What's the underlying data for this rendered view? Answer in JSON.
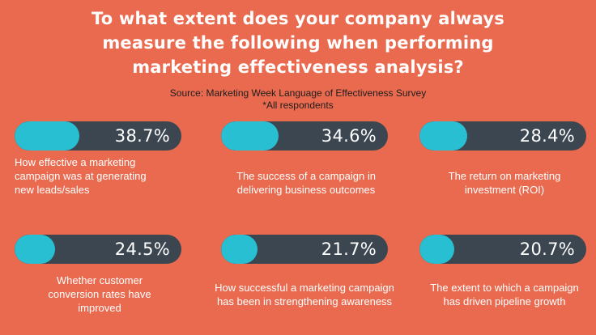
{
  "title_lines": [
    "To what extent does your company always",
    "measure the following when performing",
    "marketing effectiveness analysis?"
  ],
  "source_line": "Source: Marketing Week Language of Effectiveness Survey",
  "respondents_note": "*All respondents",
  "colors": {
    "background": "#ea6a4f",
    "track": "#3b4650",
    "fill": "#28bfd3"
  },
  "chart_data": {
    "type": "bar",
    "title": "To what extent does your company always measure the following when performing marketing effectiveness analysis?",
    "categories": [
      "How effective a marketing campaign was at generating new leads/sales",
      "The success of a campaign in delivering business outcomes",
      "The return on marketing investment (ROI)",
      "Whether customer conversion rates have improved",
      "How successful a marketing campaign has been in strengthening awareness",
      "The extent to which a campaign has driven pipeline growth"
    ],
    "values": [
      38.7,
      34.6,
      28.4,
      24.5,
      21.7,
      20.7
    ],
    "value_labels": [
      "38.7%",
      "34.6%",
      "28.4%",
      "24.5%",
      "21.7%",
      "20.7%"
    ],
    "label_lines": [
      [
        "How effective a marketing",
        "campaign was at generating",
        "new leads/sales"
      ],
      [
        "The success of a campaign in",
        "delivering business outcomes"
      ],
      [
        "The return on marketing",
        "investment (ROI)"
      ],
      [
        "Whether customer",
        "conversion rates have",
        "improved"
      ],
      [
        "How successful a marketing campaign",
        "has been in strengthening awareness"
      ],
      [
        "The extent to which a campaign",
        "has driven pipeline growth"
      ]
    ],
    "unit": "%",
    "ylim": [
      0,
      100
    ],
    "grid": false,
    "legend": "none"
  }
}
